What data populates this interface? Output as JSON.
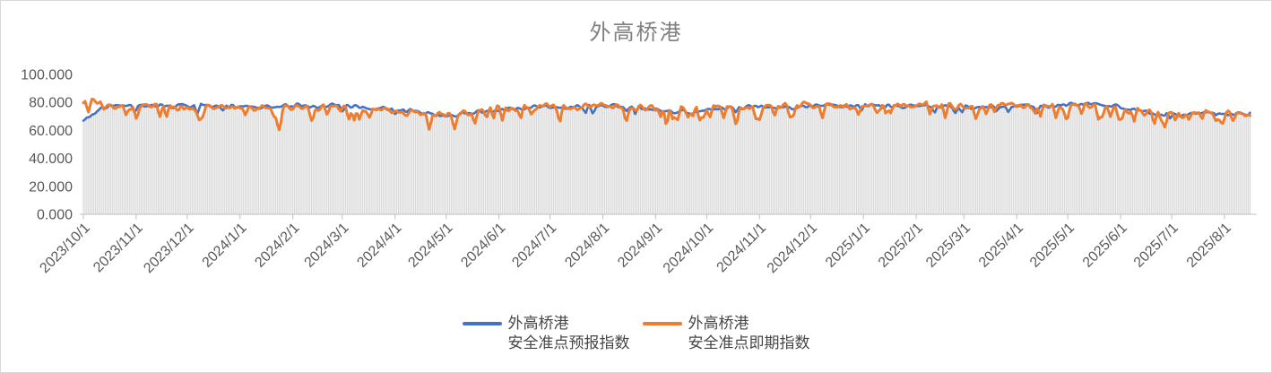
{
  "chart_title": "外高桥港",
  "colors": {
    "background": "#ffffff",
    "border": "#d9d9d9",
    "dropline": "#d9d9d9",
    "axis_line": "#bfbfbf",
    "tick_label": "#595959",
    "title": "#808080",
    "series_blue": "#4472C4",
    "series_orange": "#ED7D31"
  },
  "chart_data": {
    "type": "line",
    "title": "外高桥港",
    "xlabel": "",
    "ylabel": "",
    "ylim": [
      0,
      100
    ],
    "grid": false,
    "legend_position": "bottom-center",
    "droplines": true,
    "y_ticks": [
      {
        "value": 0,
        "label": "0.000"
      },
      {
        "value": 20,
        "label": "20.000"
      },
      {
        "value": 40,
        "label": "40.000"
      },
      {
        "value": 60,
        "label": "60.000"
      },
      {
        "value": 80,
        "label": "80.000"
      },
      {
        "value": 100,
        "label": "100.000"
      }
    ],
    "x_ticks": [
      {
        "label": "2023/10/1",
        "day": 0
      },
      {
        "label": "2023/11/1",
        "day": 31
      },
      {
        "label": "2023/12/1",
        "day": 61
      },
      {
        "label": "2024/1/1",
        "day": 92
      },
      {
        "label": "2024/2/1",
        "day": 123
      },
      {
        "label": "2024/3/1",
        "day": 152
      },
      {
        "label": "2024/4/1",
        "day": 183
      },
      {
        "label": "2024/5/1",
        "day": 213
      },
      {
        "label": "2024/6/1",
        "day": 244
      },
      {
        "label": "2024/7/1",
        "day": 274
      },
      {
        "label": "2024/8/1",
        "day": 305
      },
      {
        "label": "2024/9/1",
        "day": 336
      },
      {
        "label": "2024/10/1",
        "day": 366
      },
      {
        "label": "2024/11/1",
        "day": 397
      },
      {
        "label": "2024/12/1",
        "day": 427
      },
      {
        "label": "2025/1/1",
        "day": 458
      },
      {
        "label": "2025/2/1",
        "day": 489
      },
      {
        "label": "2025/3/1",
        "day": 517
      },
      {
        "label": "2025/4/1",
        "day": 548
      },
      {
        "label": "2025/5/1",
        "day": 578
      },
      {
        "label": "2025/6/1",
        "day": 609
      },
      {
        "label": "2025/7/1",
        "day": 639
      },
      {
        "label": "2025/8/1",
        "day": 670
      }
    ],
    "num_days": 686,
    "anchor_step": 15,
    "seed": 9,
    "series": [
      {
        "name_line1": "外高桥港",
        "name_line2": "安全准点预报指数",
        "color": "#4472C4",
        "stroke_width": 2.6,
        "noise_amplitude": 2.0,
        "dip_probability": 0.03,
        "dip_depth_min": 5,
        "dip_depth_max": 11,
        "anchors": [
          68,
          78,
          77,
          78,
          77,
          78,
          77,
          76,
          78,
          77,
          78,
          76,
          75,
          73,
          71,
          72,
          74,
          76,
          77,
          76,
          77,
          78,
          76,
          74,
          73,
          76,
          77,
          76,
          77,
          78,
          77,
          78,
          77,
          78,
          77,
          76,
          77,
          78,
          77,
          79,
          78,
          76,
          72,
          71,
          73,
          72,
          71
        ]
      },
      {
        "name_line1": "外高桥港",
        "name_line2": "安全准点即期指数",
        "color": "#ED7D31",
        "stroke_width": 3,
        "noise_amplitude": 3.4,
        "dip_probability": 0.13,
        "dip_depth_min": 8,
        "dip_depth_max": 18,
        "anchors": [
          81,
          78,
          76,
          78,
          75,
          77,
          76,
          75,
          77,
          76,
          77,
          75,
          73,
          72,
          71,
          73,
          75,
          76,
          77,
          76,
          78,
          77,
          76,
          75,
          76,
          77,
          76,
          77,
          78,
          77,
          76,
          78,
          77,
          78,
          77,
          76,
          78,
          77,
          78,
          79,
          77,
          75,
          72,
          71,
          74,
          72,
          70
        ]
      }
    ]
  }
}
